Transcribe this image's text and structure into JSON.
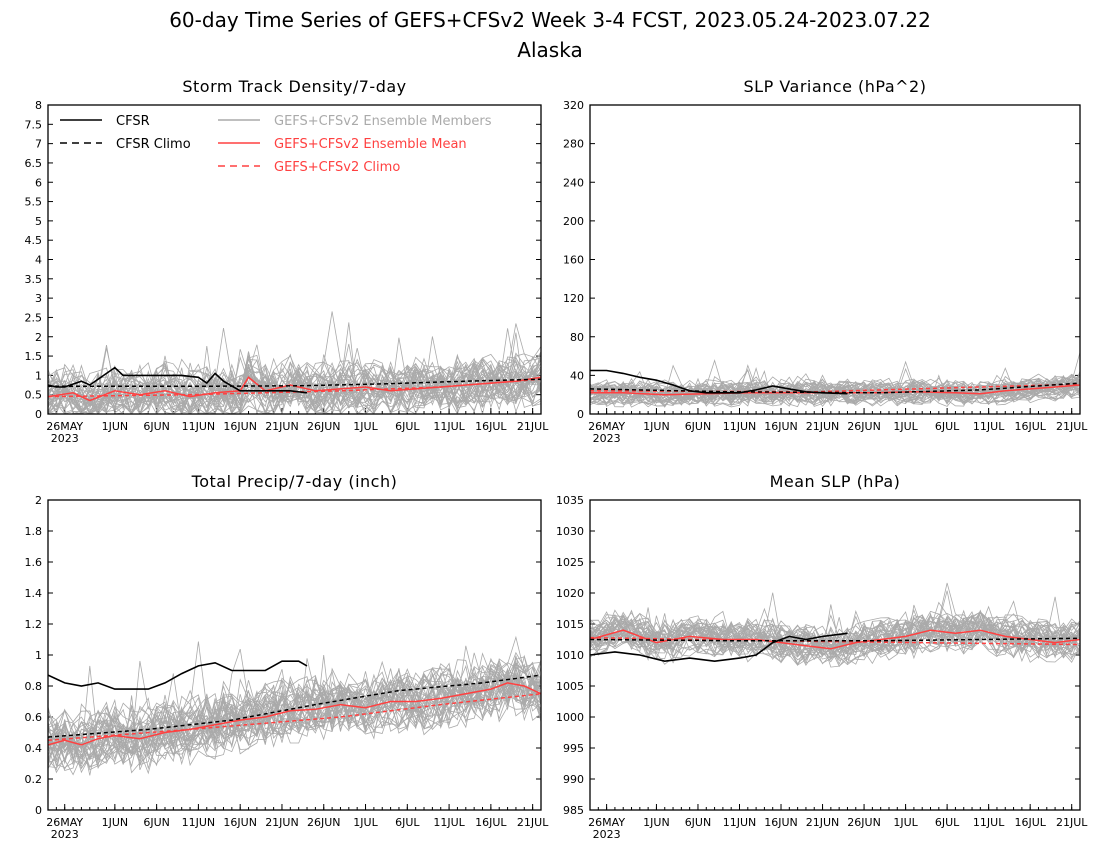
{
  "figure": {
    "title": "60-day Time Series of GEFS+CFSv2 Week 3-4 FCST, 2023.05.24-2023.07.22",
    "subtitle": "Alaska"
  },
  "legend": {
    "items": [
      {
        "label": "CFSR",
        "color": "#000000",
        "style": "solid"
      },
      {
        "label": "CFSR Climo",
        "color": "#000000",
        "style": "dashed"
      },
      {
        "label": "GEFS+CFSv2 Ensemble Members",
        "color": "#aaaaaa",
        "style": "solid"
      },
      {
        "label": "GEFS+CFSv2 Ensemble Mean",
        "color": "#ff4040",
        "style": "solid"
      },
      {
        "label": "GEFS+CFSv2 Climo",
        "color": "#ff4040",
        "style": "dashed"
      }
    ]
  },
  "colors": {
    "cfsr": "#000000",
    "members": "#aaaaaa",
    "ensemble_mean": "#ff4040"
  },
  "x_axis": {
    "start_date": "2023-05-24",
    "end_date": "2023-07-22",
    "tick_labels": [
      "26MAY",
      "1JUN",
      "6JUN",
      "11JUN",
      "16JUN",
      "21JUN",
      "26JUN",
      "1JUL",
      "6JUL",
      "11JUL",
      "16JUL",
      "21JUL"
    ],
    "tick_dates": [
      "2023-05-26",
      "2023-06-01",
      "2023-06-06",
      "2023-06-11",
      "2023-06-16",
      "2023-06-21",
      "2023-06-26",
      "2023-07-01",
      "2023-07-06",
      "2023-07-11",
      "2023-07-16",
      "2023-07-21"
    ],
    "year_label": "2023"
  },
  "chart_data": [
    {
      "type": "line",
      "title": "Storm Track Density/7-day",
      "ylim": [
        0,
        8
      ],
      "yticks": [
        "0",
        "0.5",
        "1",
        "1.5",
        "2",
        "2.5",
        "3",
        "3.5",
        "4",
        "4.5",
        "5",
        "5.5",
        "6",
        "6.5",
        "7",
        "7.5",
        "8"
      ],
      "series": [
        {
          "name": "CFSR",
          "x": [
            "2023-05-24",
            "2023-05-25",
            "2023-05-26",
            "2023-05-28",
            "2023-05-29",
            "2023-05-31",
            "2023-06-01",
            "2023-06-02",
            "2023-06-04",
            "2023-06-06",
            "2023-06-09",
            "2023-06-11",
            "2023-06-12",
            "2023-06-13",
            "2023-06-14",
            "2023-06-16",
            "2023-06-18",
            "2023-06-22",
            "2023-06-24"
          ],
          "y": [
            0.75,
            0.7,
            0.7,
            0.85,
            0.75,
            1.05,
            1.2,
            1.0,
            1.0,
            1.0,
            1.0,
            0.95,
            0.8,
            1.05,
            0.85,
            0.6,
            0.6,
            0.6,
            0.55
          ]
        },
        {
          "name": "CFSR Climo",
          "x": [
            "2023-05-24",
            "2023-06-03",
            "2023-06-13",
            "2023-06-23",
            "2023-07-03",
            "2023-07-13",
            "2023-07-22"
          ],
          "y": [
            0.72,
            0.72,
            0.72,
            0.73,
            0.78,
            0.85,
            0.9
          ]
        },
        {
          "name": "GEFS+CFSv2 Ensemble Mean",
          "x": [
            "2023-05-24",
            "2023-05-27",
            "2023-05-29",
            "2023-06-01",
            "2023-06-04",
            "2023-06-07",
            "2023-06-10",
            "2023-06-13",
            "2023-06-16",
            "2023-06-17",
            "2023-06-19",
            "2023-06-22",
            "2023-06-25",
            "2023-06-28",
            "2023-07-01",
            "2023-07-04",
            "2023-07-07",
            "2023-07-10",
            "2023-07-13",
            "2023-07-16",
            "2023-07-19",
            "2023-07-22"
          ],
          "y": [
            0.45,
            0.55,
            0.35,
            0.6,
            0.5,
            0.6,
            0.45,
            0.55,
            0.6,
            0.95,
            0.6,
            0.75,
            0.6,
            0.65,
            0.7,
            0.6,
            0.65,
            0.7,
            0.75,
            0.8,
            0.85,
            0.95
          ]
        },
        {
          "name": "GEFS+CFSv2 Climo",
          "x": [
            "2023-05-24",
            "2023-06-10",
            "2023-06-28",
            "2023-07-10",
            "2023-07-22"
          ],
          "y": [
            0.45,
            0.5,
            0.6,
            0.7,
            0.9
          ]
        }
      ],
      "members": {
        "count": 40,
        "mean_curve": "ensemble_mean",
        "spread": 0.55,
        "max": 4.1,
        "seed": 11
      }
    },
    {
      "type": "line",
      "title": "SLP Variance (hPa^2)",
      "ylim": [
        0,
        320
      ],
      "yticks": [
        "0",
        "40",
        "80",
        "120",
        "160",
        "200",
        "240",
        "280",
        "320"
      ],
      "series": [
        {
          "name": "CFSR",
          "x": [
            "2023-05-24",
            "2023-05-26",
            "2023-05-28",
            "2023-05-30",
            "2023-06-01",
            "2023-06-03",
            "2023-06-05",
            "2023-06-07",
            "2023-06-09",
            "2023-06-11",
            "2023-06-13",
            "2023-06-15",
            "2023-06-17",
            "2023-06-19",
            "2023-06-21",
            "2023-06-24"
          ],
          "y": [
            45,
            45,
            42,
            38,
            35,
            30,
            24,
            22,
            22,
            22,
            25,
            29,
            26,
            23,
            22,
            21
          ]
        },
        {
          "name": "CFSR Climo",
          "x": [
            "2023-05-24",
            "2023-06-10",
            "2023-06-28",
            "2023-07-10",
            "2023-07-22"
          ],
          "y": [
            26,
            23,
            22,
            25,
            32
          ]
        },
        {
          "name": "GEFS+CFSv2 Ensemble Mean",
          "x": [
            "2023-05-24",
            "2023-05-28",
            "2023-06-02",
            "2023-06-07",
            "2023-06-12",
            "2023-06-17",
            "2023-06-22",
            "2023-06-27",
            "2023-07-02",
            "2023-07-07",
            "2023-07-10",
            "2023-07-13",
            "2023-07-16",
            "2023-07-19",
            "2023-07-22"
          ],
          "y": [
            22,
            22,
            20,
            21,
            22,
            22,
            22,
            22,
            23,
            22,
            21,
            24,
            26,
            28,
            30
          ]
        },
        {
          "name": "GEFS+CFSv2 Climo",
          "x": [
            "2023-05-24",
            "2023-06-20",
            "2023-07-22"
          ],
          "y": [
            24,
            23,
            31
          ]
        }
      ],
      "members": {
        "count": 40,
        "mean_curve": "ensemble_mean",
        "spread": 10,
        "max": 95,
        "seed": 23
      }
    },
    {
      "type": "line",
      "title": "Total Precip/7-day (inch)",
      "ylim": [
        0,
        2
      ],
      "yticks": [
        "0",
        "0.2",
        "0.4",
        "0.6",
        "0.8",
        "1",
        "1.2",
        "1.4",
        "1.6",
        "1.8",
        "2"
      ],
      "series": [
        {
          "name": "CFSR",
          "x": [
            "2023-05-24",
            "2023-05-26",
            "2023-05-28",
            "2023-05-30",
            "2023-06-01",
            "2023-06-03",
            "2023-06-05",
            "2023-06-07",
            "2023-06-09",
            "2023-06-11",
            "2023-06-13",
            "2023-06-15",
            "2023-06-17",
            "2023-06-19",
            "2023-06-21",
            "2023-06-23",
            "2023-06-24"
          ],
          "y": [
            0.87,
            0.82,
            0.8,
            0.82,
            0.78,
            0.78,
            0.78,
            0.82,
            0.88,
            0.93,
            0.95,
            0.9,
            0.9,
            0.9,
            0.96,
            0.96,
            0.93
          ]
        },
        {
          "name": "CFSR Climo",
          "x": [
            "2023-05-24",
            "2023-06-05",
            "2023-06-15",
            "2023-06-25",
            "2023-07-05",
            "2023-07-15",
            "2023-07-22"
          ],
          "y": [
            0.47,
            0.52,
            0.58,
            0.68,
            0.77,
            0.82,
            0.87
          ]
        },
        {
          "name": "GEFS+CFSv2 Ensemble Mean",
          "x": [
            "2023-05-24",
            "2023-05-26",
            "2023-05-28",
            "2023-05-30",
            "2023-06-01",
            "2023-06-04",
            "2023-06-07",
            "2023-06-10",
            "2023-06-13",
            "2023-06-16",
            "2023-06-19",
            "2023-06-22",
            "2023-06-25",
            "2023-06-28",
            "2023-07-01",
            "2023-07-04",
            "2023-07-07",
            "2023-07-10",
            "2023-07-13",
            "2023-07-16",
            "2023-07-18",
            "2023-07-20",
            "2023-07-22"
          ],
          "y": [
            0.42,
            0.45,
            0.42,
            0.46,
            0.48,
            0.46,
            0.5,
            0.52,
            0.55,
            0.58,
            0.6,
            0.64,
            0.65,
            0.68,
            0.66,
            0.7,
            0.7,
            0.72,
            0.75,
            0.78,
            0.82,
            0.8,
            0.75
          ]
        },
        {
          "name": "GEFS+CFSv2 Climo",
          "x": [
            "2023-05-24",
            "2023-06-10",
            "2023-06-28",
            "2023-07-10",
            "2023-07-22"
          ],
          "y": [
            0.45,
            0.52,
            0.6,
            0.68,
            0.75
          ]
        }
      ],
      "members": {
        "count": 40,
        "mean_curve": "ensemble_mean",
        "spread": 0.17,
        "max": 1.65,
        "seed": 37
      }
    },
    {
      "type": "line",
      "title": "Mean SLP (hPa)",
      "ylim": [
        985,
        1035
      ],
      "yticks": [
        "985",
        "990",
        "995",
        "1000",
        "1005",
        "1010",
        "1015",
        "1020",
        "1025",
        "1030",
        "1035"
      ],
      "series": [
        {
          "name": "CFSR",
          "x": [
            "2023-05-24",
            "2023-05-27",
            "2023-05-30",
            "2023-06-02",
            "2023-06-05",
            "2023-06-08",
            "2023-06-11",
            "2023-06-13",
            "2023-06-15",
            "2023-06-17",
            "2023-06-19",
            "2023-06-21",
            "2023-06-24"
          ],
          "y": [
            1010,
            1010.5,
            1010,
            1009,
            1009.5,
            1009,
            1009.5,
            1010,
            1012,
            1013,
            1012.5,
            1013,
            1013.5
          ]
        },
        {
          "name": "CFSR Climo",
          "x": [
            "2023-05-24",
            "2023-06-10",
            "2023-06-28",
            "2023-07-10",
            "2023-07-22"
          ],
          "y": [
            1012.5,
            1012.3,
            1012.3,
            1012.5,
            1012.7
          ]
        },
        {
          "name": "GEFS+CFSv2 Ensemble Mean",
          "x": [
            "2023-05-24",
            "2023-05-28",
            "2023-06-01",
            "2023-06-05",
            "2023-06-09",
            "2023-06-13",
            "2023-06-16",
            "2023-06-19",
            "2023-06-22",
            "2023-06-25",
            "2023-06-28",
            "2023-07-01",
            "2023-07-04",
            "2023-07-07",
            "2023-07-10",
            "2023-07-13",
            "2023-07-16",
            "2023-07-19",
            "2023-07-22"
          ],
          "y": [
            1012.5,
            1014,
            1012,
            1013,
            1012.5,
            1012.5,
            1012,
            1011.5,
            1011,
            1012,
            1012.5,
            1013,
            1014,
            1013.5,
            1014,
            1013,
            1012.5,
            1012,
            1012.5
          ]
        },
        {
          "name": "GEFS+CFSv2 Climo",
          "x": [
            "2023-05-24",
            "2023-06-20",
            "2023-07-22"
          ],
          "y": [
            1012.8,
            1012.2,
            1011.7
          ]
        }
      ],
      "members": {
        "count": 40,
        "mean_curve": "ensemble_mean",
        "spread": 2.6,
        "max": 1022,
        "seed": 51
      }
    }
  ]
}
